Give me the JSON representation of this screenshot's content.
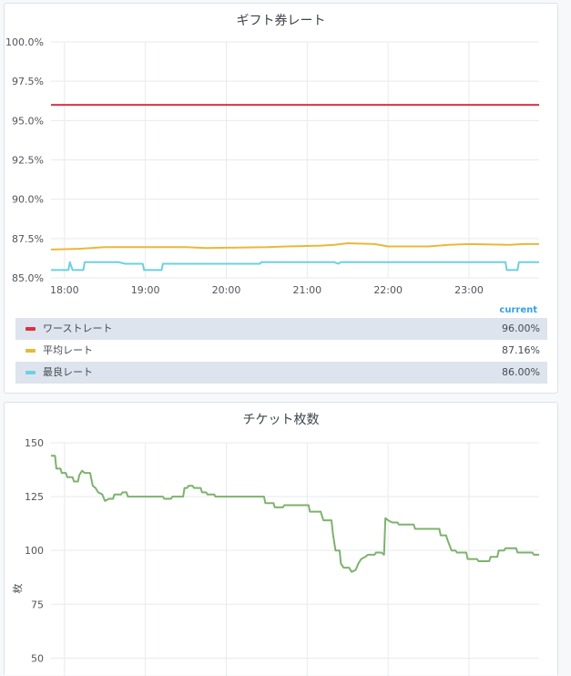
{
  "panels": {
    "rate": {
      "title": "ギフト券レート"
    },
    "tickets": {
      "title": "チケット枚数"
    }
  },
  "legend": {
    "header": "current",
    "items": [
      {
        "name": "ワーストレート",
        "value": "96.00%",
        "color": "#e02f44"
      },
      {
        "name": "平均レート",
        "value": "87.16%",
        "color": "#eab839"
      },
      {
        "name": "最良レート",
        "value": "86.00%",
        "color": "#6ed0e0"
      }
    ]
  },
  "chart_data": [
    {
      "type": "line",
      "title": "ギフト券レート",
      "xlabel": "",
      "ylabel": "",
      "ylim": [
        85,
        100
      ],
      "xlim": [
        "17:50",
        "23:52"
      ],
      "yticks": [
        "85.0%",
        "87.5%",
        "90.0%",
        "92.5%",
        "95.0%",
        "97.5%",
        "100.0%"
      ],
      "xticks": [
        "18:00",
        "19:00",
        "20:00",
        "21:00",
        "22:00",
        "23:00"
      ],
      "grid": true,
      "legend_position": "bottom",
      "series": [
        {
          "name": "ワーストレート",
          "color": "#e02f44",
          "points": [
            [
              "17:50",
              96.0
            ],
            [
              "23:52",
              96.0
            ]
          ]
        },
        {
          "name": "平均レート",
          "color": "#eab839",
          "points": [
            [
              "17:50",
              86.8
            ],
            [
              "18:10",
              86.85
            ],
            [
              "18:20",
              86.9
            ],
            [
              "18:30",
              86.95
            ],
            [
              "19:00",
              86.95
            ],
            [
              "19:30",
              86.95
            ],
            [
              "19:45",
              86.9
            ],
            [
              "20:30",
              86.95
            ],
            [
              "20:45",
              87.0
            ],
            [
              "21:10",
              87.05
            ],
            [
              "21:20",
              87.1
            ],
            [
              "21:30",
              87.2
            ],
            [
              "21:50",
              87.15
            ],
            [
              "22:00",
              87.0
            ],
            [
              "22:30",
              87.0
            ],
            [
              "22:45",
              87.1
            ],
            [
              "23:00",
              87.15
            ],
            [
              "23:30",
              87.1
            ],
            [
              "23:40",
              87.15
            ],
            [
              "23:52",
              87.15
            ]
          ]
        },
        {
          "name": "最良レート",
          "color": "#6ed0e0",
          "points": [
            [
              "17:50",
              85.5
            ],
            [
              "18:03",
              85.5
            ],
            [
              "18:04",
              86.0
            ],
            [
              "18:06",
              85.5
            ],
            [
              "18:14",
              85.5
            ],
            [
              "18:15",
              86.0
            ],
            [
              "18:40",
              86.0
            ],
            [
              "18:45",
              85.9
            ],
            [
              "18:58",
              85.9
            ],
            [
              "18:59",
              85.5
            ],
            [
              "19:12",
              85.5
            ],
            [
              "19:13",
              85.9
            ],
            [
              "20:25",
              85.9
            ],
            [
              "20:26",
              86.0
            ],
            [
              "21:20",
              86.0
            ],
            [
              "21:23",
              85.9
            ],
            [
              "21:25",
              86.0
            ],
            [
              "23:27",
              86.0
            ],
            [
              "23:28",
              85.5
            ],
            [
              "23:36",
              85.5
            ],
            [
              "23:37",
              86.0
            ],
            [
              "23:52",
              86.0
            ]
          ]
        }
      ]
    },
    {
      "type": "line",
      "title": "チケット枚数",
      "xlabel": "",
      "ylabel": "枚",
      "ylim": [
        40,
        150
      ],
      "xlim": [
        "17:50",
        "23:52"
      ],
      "yticks": [
        "50",
        "75",
        "100",
        "125",
        "150"
      ],
      "grid": true,
      "series": [
        {
          "name": "",
          "color": "#7eb26d",
          "points": [
            [
              "17:50",
              144
            ],
            [
              "17:53",
              144
            ],
            [
              "17:54",
              138
            ],
            [
              "17:57",
              138
            ],
            [
              "17:58",
              136
            ],
            [
              "18:01",
              136
            ],
            [
              "18:02",
              134
            ],
            [
              "18:06",
              134
            ],
            [
              "18:07",
              132
            ],
            [
              "18:10",
              132
            ],
            [
              "18:11",
              135
            ],
            [
              "18:13",
              137
            ],
            [
              "18:15",
              136
            ],
            [
              "18:19",
              136
            ],
            [
              "18:21",
              130
            ],
            [
              "18:23",
              129
            ],
            [
              "18:25",
              127
            ],
            [
              "18:28",
              126
            ],
            [
              "18:30",
              123
            ],
            [
              "18:33",
              124
            ],
            [
              "18:36",
              124
            ],
            [
              "18:37",
              126
            ],
            [
              "18:42",
              126
            ],
            [
              "18:43",
              127
            ],
            [
              "18:46",
              127
            ],
            [
              "18:47",
              125
            ],
            [
              "19:13",
              125
            ],
            [
              "19:14",
              124
            ],
            [
              "19:19",
              124
            ],
            [
              "19:20",
              125
            ],
            [
              "19:28",
              125
            ],
            [
              "19:29",
              129
            ],
            [
              "19:31",
              129
            ],
            [
              "19:32",
              130
            ],
            [
              "19:35",
              130
            ],
            [
              "19:36",
              129
            ],
            [
              "19:41",
              129
            ],
            [
              "19:42",
              127
            ],
            [
              "19:45",
              127
            ],
            [
              "19:46",
              126
            ],
            [
              "19:51",
              126
            ],
            [
              "19:52",
              125
            ],
            [
              "20:28",
              125
            ],
            [
              "20:29",
              122
            ],
            [
              "20:35",
              122
            ],
            [
              "20:36",
              120
            ],
            [
              "20:42",
              120
            ],
            [
              "20:43",
              121
            ],
            [
              "21:01",
              121
            ],
            [
              "21:02",
              118
            ],
            [
              "21:10",
              118
            ],
            [
              "21:11",
              116
            ],
            [
              "21:12",
              114
            ],
            [
              "21:18",
              114
            ],
            [
              "21:19",
              108
            ],
            [
              "21:21",
              100
            ],
            [
              "21:24",
              100
            ],
            [
              "21:25",
              94
            ],
            [
              "21:27",
              92
            ],
            [
              "21:31",
              92
            ],
            [
              "21:33",
              90
            ],
            [
              "21:36",
              91
            ],
            [
              "21:38",
              94
            ],
            [
              "21:40",
              96
            ],
            [
              "21:43",
              97
            ],
            [
              "21:45",
              98
            ],
            [
              "21:50",
              98
            ],
            [
              "21:51",
              99
            ],
            [
              "21:55",
              99
            ],
            [
              "21:57",
              98
            ],
            [
              "21:58",
              115
            ],
            [
              "22:00",
              114
            ],
            [
              "22:03",
              113
            ],
            [
              "22:07",
              113
            ],
            [
              "22:08",
              112
            ],
            [
              "22:19",
              112
            ],
            [
              "22:20",
              110
            ],
            [
              "22:38",
              110
            ],
            [
              "22:39",
              107
            ],
            [
              "22:43",
              107
            ],
            [
              "22:44",
              105
            ],
            [
              "22:47",
              100
            ],
            [
              "22:50",
              100
            ],
            [
              "22:51",
              99
            ],
            [
              "22:58",
              99
            ],
            [
              "22:59",
              96
            ],
            [
              "23:06",
              96
            ],
            [
              "23:07",
              95
            ],
            [
              "23:15",
              95
            ],
            [
              "23:16",
              97
            ],
            [
              "23:21",
              97
            ],
            [
              "23:22",
              100
            ],
            [
              "23:26",
              100
            ],
            [
              "23:27",
              101
            ],
            [
              "23:35",
              101
            ],
            [
              "23:36",
              99
            ],
            [
              "23:47",
              99
            ],
            [
              "23:48",
              98
            ],
            [
              "23:52",
              98
            ]
          ]
        }
      ]
    }
  ]
}
